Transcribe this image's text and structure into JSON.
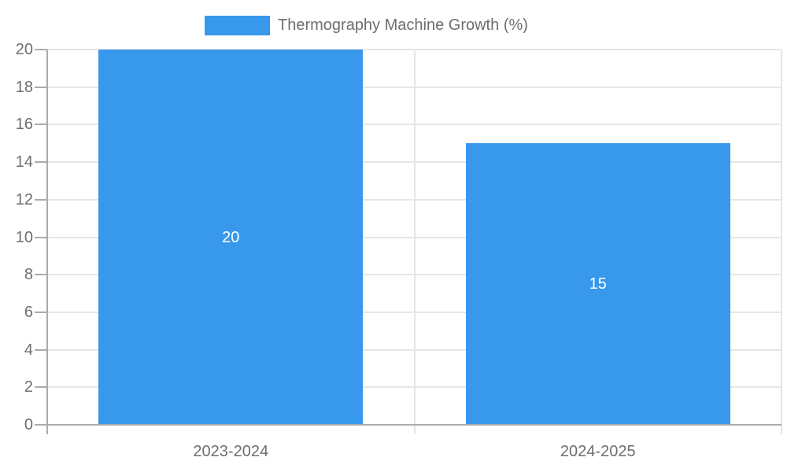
{
  "legend": {
    "label": "Thermography Machine Growth (%)"
  },
  "chart_data": {
    "type": "bar",
    "title": "Thermography Machine Growth (%)",
    "categories": [
      "2023-2024",
      "2024-2025"
    ],
    "series": [
      {
        "name": "Thermography Machine Growth (%)",
        "values": [
          20,
          15
        ]
      }
    ],
    "bar_value_labels": [
      "20",
      "15"
    ],
    "ylim": [
      0,
      20
    ],
    "ytick_step": 2,
    "ytick_labels": [
      "0",
      "2",
      "4",
      "6",
      "8",
      "10",
      "12",
      "14",
      "16",
      "18",
      "20"
    ],
    "xlabel": "",
    "ylabel": "",
    "grid": true,
    "legend_position": "top-center",
    "colors": {
      "bar": "#3899EC",
      "value_label": "#FFFFFF",
      "axis": "#ABABAB",
      "gridline": "#E6E6E6",
      "tick_label": "#6E6E6E",
      "legend_text": "#6E6E6E",
      "background": "#FFFFFF"
    }
  }
}
